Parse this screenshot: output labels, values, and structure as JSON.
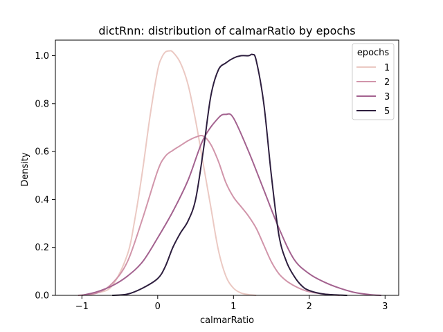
{
  "chart_data": {
    "type": "line",
    "title": "dictRnn: distribution of calmarRatio by epochs",
    "xlabel": "calmarRatio",
    "ylabel": "Density",
    "xlim": [
      -1.35,
      3.18
    ],
    "ylim": [
      0,
      1.065
    ],
    "xticks": [
      -1,
      0,
      1,
      2,
      3
    ],
    "xtick_labels": [
      "−1",
      "0",
      "1",
      "2",
      "3"
    ],
    "yticks": [
      0,
      0.2,
      0.4,
      0.6,
      0.8,
      1.0
    ],
    "ytick_labels": [
      "0.0",
      "0.2",
      "0.4",
      "0.6",
      "0.8",
      "1.0"
    ],
    "grid": false,
    "legend": {
      "title": "epochs",
      "placement": "top-right"
    },
    "series": [
      {
        "name": "1",
        "color": "#ebc9c3",
        "x": [
          -1.0,
          -0.8,
          -0.6,
          -0.4,
          -0.3,
          -0.2,
          -0.1,
          0.0,
          0.05,
          0.1,
          0.15,
          0.2,
          0.3,
          0.4,
          0.5,
          0.6,
          0.7,
          0.8,
          0.9,
          1.0,
          1.1,
          1.2,
          1.3
        ],
        "y": [
          0.0,
          0.01,
          0.04,
          0.17,
          0.32,
          0.52,
          0.75,
          0.94,
          0.99,
          1.015,
          1.02,
          1.015,
          0.97,
          0.88,
          0.73,
          0.55,
          0.37,
          0.19,
          0.08,
          0.03,
          0.01,
          0.003,
          0.0
        ]
      },
      {
        "name": "2",
        "color": "#d195aa",
        "x": [
          -1.05,
          -0.8,
          -0.6,
          -0.4,
          -0.2,
          0.0,
          0.1,
          0.2,
          0.3,
          0.4,
          0.5,
          0.6,
          0.7,
          0.8,
          0.9,
          1.0,
          1.1,
          1.2,
          1.3,
          1.4,
          1.5,
          1.6,
          1.7,
          1.8,
          1.9,
          2.0,
          2.2,
          2.4
        ],
        "y": [
          0.0,
          0.01,
          0.05,
          0.14,
          0.32,
          0.52,
          0.58,
          0.605,
          0.625,
          0.645,
          0.66,
          0.665,
          0.63,
          0.56,
          0.47,
          0.41,
          0.37,
          0.33,
          0.28,
          0.21,
          0.14,
          0.09,
          0.06,
          0.04,
          0.025,
          0.015,
          0.005,
          0.0
        ]
      },
      {
        "name": "3",
        "color": "#a3628f",
        "x": [
          -1.0,
          -0.8,
          -0.6,
          -0.4,
          -0.2,
          0.0,
          0.2,
          0.4,
          0.6,
          0.8,
          0.9,
          1.0,
          1.2,
          1.4,
          1.6,
          1.8,
          2.0,
          2.2,
          2.4,
          2.6,
          2.8,
          2.95
        ],
        "y": [
          0.0,
          0.015,
          0.04,
          0.08,
          0.14,
          0.24,
          0.35,
          0.48,
          0.65,
          0.74,
          0.755,
          0.74,
          0.6,
          0.44,
          0.28,
          0.15,
          0.09,
          0.055,
          0.03,
          0.012,
          0.003,
          0.0
        ]
      },
      {
        "name": "5",
        "color": "#2d1e3e",
        "x": [
          -0.6,
          -0.4,
          -0.2,
          0.0,
          0.1,
          0.2,
          0.3,
          0.4,
          0.5,
          0.6,
          0.7,
          0.8,
          0.9,
          1.0,
          1.1,
          1.2,
          1.25,
          1.3,
          1.4,
          1.5,
          1.6,
          1.7,
          1.8,
          1.9,
          2.0,
          2.2,
          2.5
        ],
        "y": [
          0.0,
          0.005,
          0.03,
          0.07,
          0.12,
          0.2,
          0.26,
          0.31,
          0.4,
          0.6,
          0.83,
          0.94,
          0.97,
          0.99,
          1.0,
          1.0,
          1.005,
          0.98,
          0.8,
          0.5,
          0.25,
          0.14,
          0.08,
          0.04,
          0.02,
          0.005,
          0.0
        ]
      }
    ]
  }
}
